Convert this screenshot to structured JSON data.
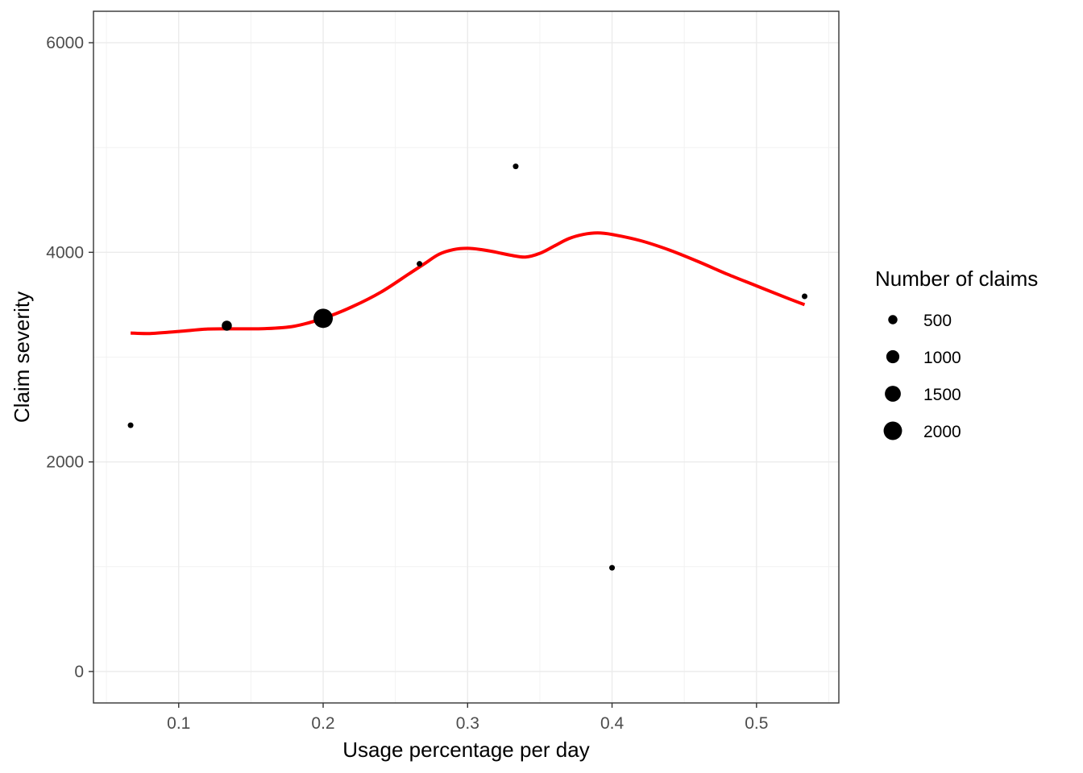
{
  "chart_data": {
    "type": "scatter",
    "xlabel": "Usage percentage per day",
    "ylabel": "Claim severity",
    "xlim": [
      0.041,
      0.557
    ],
    "ylim": [
      -300,
      6300
    ],
    "x_ticks": [
      0.1,
      0.2,
      0.3,
      0.4,
      0.5
    ],
    "x_tick_labels": [
      "0.1",
      "0.2",
      "0.3",
      "0.4",
      "0.5"
    ],
    "x_minor_ticks": [
      0.05,
      0.15,
      0.25,
      0.35,
      0.45,
      0.55
    ],
    "y_ticks": [
      0,
      2000,
      4000,
      6000
    ],
    "y_tick_labels": [
      "0",
      "2000",
      "4000",
      "6000"
    ],
    "y_minor_ticks": [
      1000,
      3000,
      5000
    ],
    "grid": true,
    "points": [
      {
        "x": 0.0667,
        "y": 2350,
        "claims": 30
      },
      {
        "x": 0.1333,
        "y": 3300,
        "claims": 600
      },
      {
        "x": 0.2,
        "y": 3370,
        "claims": 2200
      },
      {
        "x": 0.2667,
        "y": 3890,
        "claims": 180
      },
      {
        "x": 0.3333,
        "y": 4820,
        "claims": 25
      },
      {
        "x": 0.4,
        "y": 990,
        "claims": 20
      },
      {
        "x": 0.5333,
        "y": 3580,
        "claims": 20
      }
    ],
    "smooth_line": {
      "color": "#ff0000",
      "x": [
        0.0667,
        0.08,
        0.1,
        0.12,
        0.14,
        0.16,
        0.18,
        0.2,
        0.22,
        0.24,
        0.26,
        0.27,
        0.28,
        0.29,
        0.3,
        0.31,
        0.32,
        0.33,
        0.34,
        0.35,
        0.36,
        0.37,
        0.38,
        0.39,
        0.4,
        0.42,
        0.44,
        0.46,
        0.48,
        0.5,
        0.52,
        0.5333
      ],
      "y": [
        3230,
        3225,
        3245,
        3268,
        3270,
        3272,
        3295,
        3370,
        3480,
        3620,
        3800,
        3890,
        3980,
        4025,
        4038,
        4025,
        4000,
        3972,
        3955,
        3990,
        4060,
        4130,
        4170,
        4185,
        4170,
        4110,
        4020,
        3910,
        3790,
        3680,
        3570,
        3500
      ]
    },
    "legend": {
      "title": "Number of claims",
      "position": "right",
      "entries": [
        {
          "value": 500,
          "label": "500"
        },
        {
          "value": 1000,
          "label": "1000"
        },
        {
          "value": 1500,
          "label": "1500"
        },
        {
          "value": 2000,
          "label": "2000"
        }
      ]
    }
  }
}
